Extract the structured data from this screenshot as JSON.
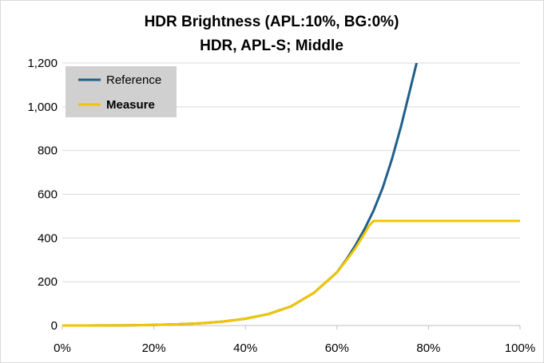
{
  "chart_data": {
    "type": "line",
    "title_line1": "HDR Brightness (APL:10%, BG:0%)",
    "title_line2": "HDR, APL-S; Middle",
    "xlabel": "",
    "ylabel": "",
    "xlim": [
      0,
      100
    ],
    "ylim": [
      0,
      1200
    ],
    "x_ticks": [
      0,
      20,
      40,
      60,
      80,
      100
    ],
    "x_tick_labels": [
      "0%",
      "20%",
      "40%",
      "60%",
      "80%",
      "100%"
    ],
    "y_ticks": [
      0,
      200,
      400,
      600,
      800,
      1000,
      1200
    ],
    "y_tick_labels": [
      "0",
      "200",
      "400",
      "600",
      "800",
      "1,000",
      "1,200"
    ],
    "grid": "horizontal",
    "legend_position": "top-left",
    "series": [
      {
        "name": "Reference",
        "color": "#1f5f8b",
        "bold": false,
        "x": [
          0,
          5,
          10,
          15,
          20,
          25,
          30,
          35,
          40,
          45,
          50,
          55,
          60,
          62,
          64,
          66,
          68,
          70,
          72,
          74,
          76,
          77.4
        ],
        "y": [
          0,
          0.1,
          0.3,
          1,
          2.5,
          5.5,
          10,
          18,
          31,
          52,
          88,
          150,
          243,
          300,
          365,
          440,
          525,
          630,
          760,
          910,
          1080,
          1200
        ]
      },
      {
        "name": "Measure",
        "color": "#f2c500",
        "bold": true,
        "x": [
          0,
          5,
          10,
          15,
          20,
          25,
          30,
          35,
          40,
          45,
          50,
          55,
          60,
          62,
          64,
          66,
          67,
          68,
          70,
          75,
          80,
          85,
          90,
          95,
          100
        ],
        "y": [
          0,
          0.1,
          0.3,
          1,
          2.5,
          5.5,
          10,
          18,
          31,
          52,
          88,
          150,
          243,
          296,
          352,
          420,
          455,
          478,
          478,
          478,
          478,
          478,
          478,
          478,
          478
        ]
      }
    ]
  }
}
